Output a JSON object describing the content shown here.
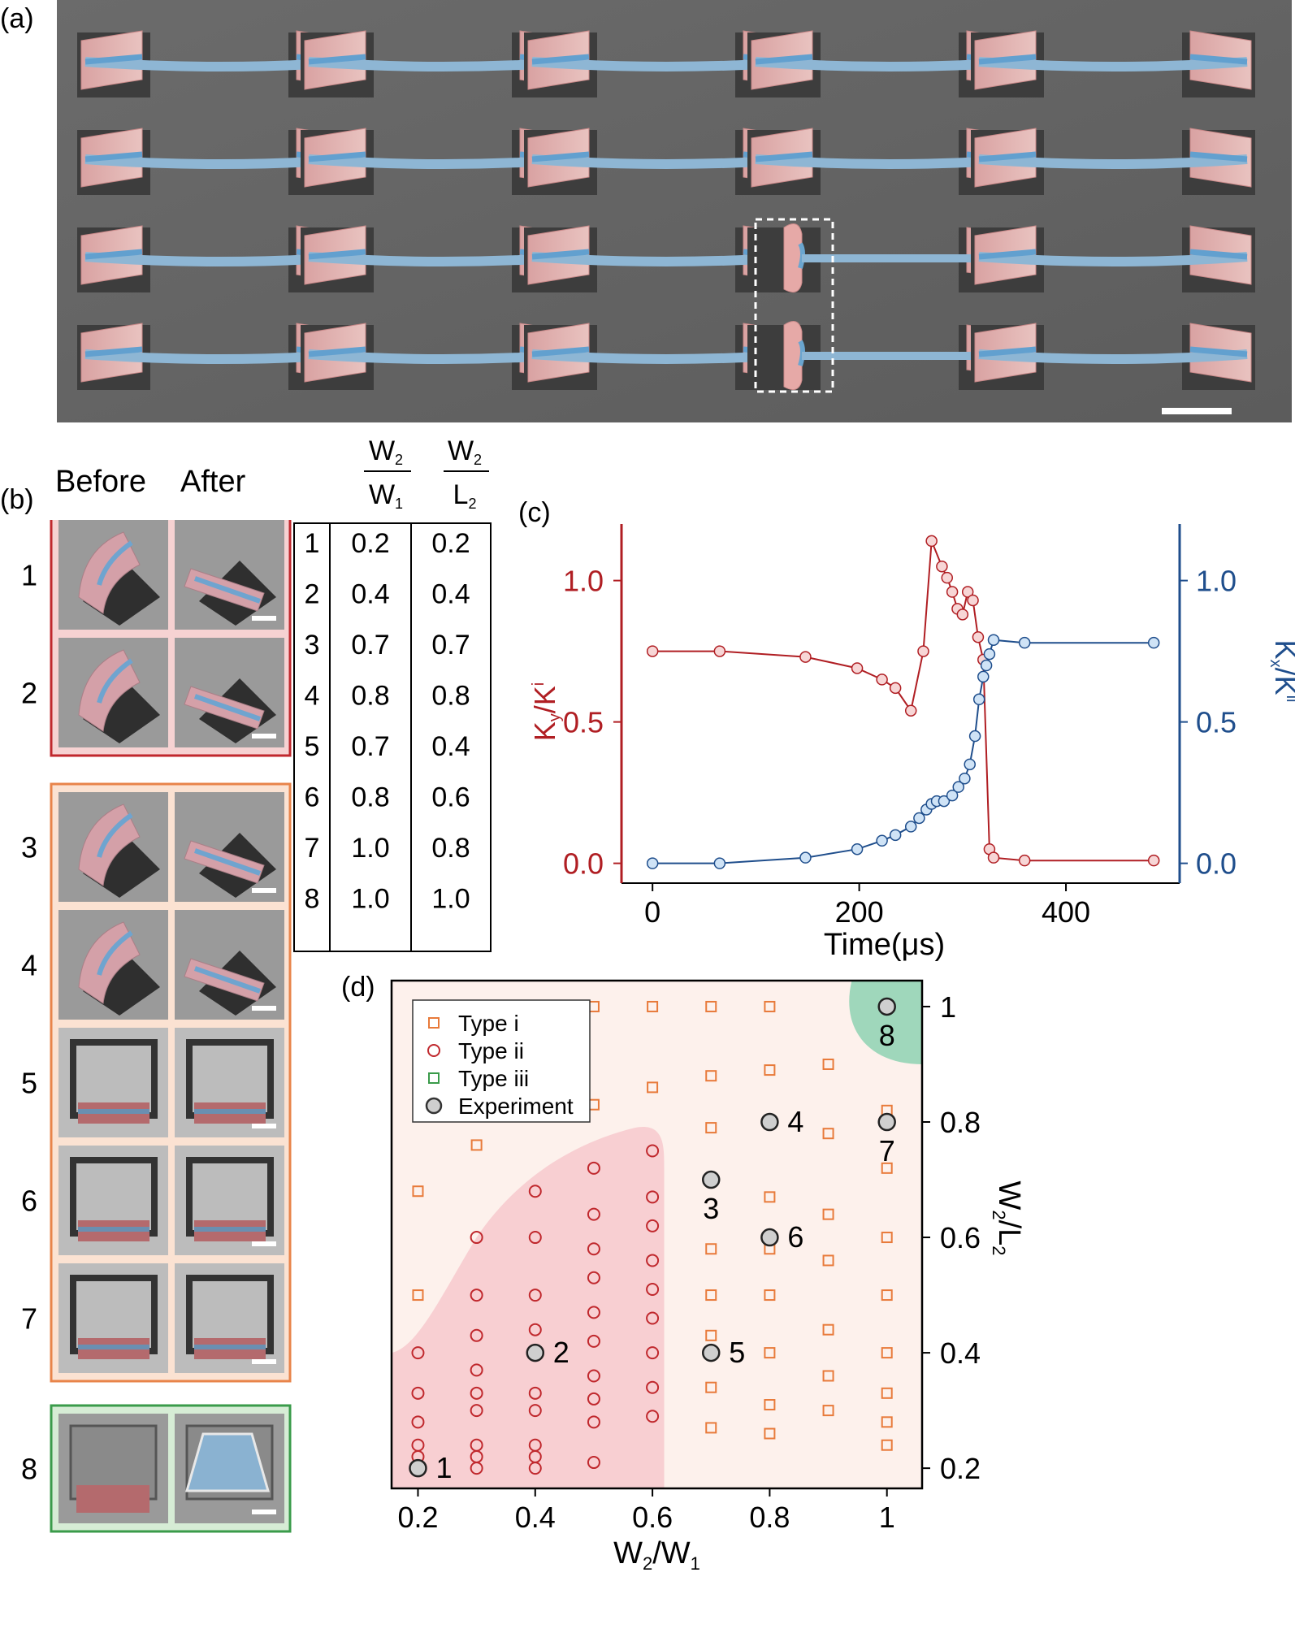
{
  "panel_labels": {
    "a": "(a)",
    "b": "(b)",
    "c": "(c)",
    "d": "(d)"
  },
  "panel_b": {
    "header_before": "Before",
    "header_after": "After",
    "rows": [
      "1",
      "2",
      "3",
      "4",
      "5",
      "6",
      "7",
      "8"
    ],
    "groups": [
      {
        "rows": [
          1,
          2
        ],
        "border": "#c0282d",
        "fill": "#f6d2d2"
      },
      {
        "rows": [
          3,
          4,
          5,
          6,
          7
        ],
        "border": "#e8844a",
        "fill": "#fbe2d2"
      },
      {
        "rows": [
          8
        ],
        "border": "#3a9b4a",
        "fill": "#d6ecd5"
      }
    ]
  },
  "table": {
    "col1_num": "W",
    "col1_num_sub": "2",
    "col1_den": "W",
    "col1_den_sub": "1",
    "col2_num": "W",
    "col2_num_sub": "2",
    "col2_den": "L",
    "col2_den_sub": "2",
    "rows": [
      {
        "id": "1",
        "a": "0.2",
        "b": "0.2"
      },
      {
        "id": "2",
        "a": "0.4",
        "b": "0.4"
      },
      {
        "id": "3",
        "a": "0.7",
        "b": "0.7"
      },
      {
        "id": "4",
        "a": "0.8",
        "b": "0.8"
      },
      {
        "id": "5",
        "a": "0.7",
        "b": "0.4"
      },
      {
        "id": "6",
        "a": "0.8",
        "b": "0.6"
      },
      {
        "id": "7",
        "a": "1.0",
        "b": "0.8"
      },
      {
        "id": "8",
        "a": "1.0",
        "b": "1.0"
      }
    ]
  },
  "chart_data": [
    {
      "panel": "c",
      "type": "line",
      "xlabel": "Time(μs)",
      "ylabel_left": {
        "main": "K",
        "sub1": "y",
        "mid": "/K",
        "sup": "i"
      },
      "ylabel_right": {
        "main": "K",
        "sub1": "x",
        "mid": "/K",
        "sup": "ii"
      },
      "xlim": [
        -30,
        510
      ],
      "ylim": [
        -0.07,
        1.2
      ],
      "xticks": [
        0,
        200,
        400
      ],
      "yticks": [
        0.0,
        0.5,
        1.0
      ],
      "xtick_labels": [
        "0",
        "200",
        "400"
      ],
      "ytick_labels_left": [
        "0.0",
        "0.5",
        "1.0"
      ],
      "ytick_labels_right": [
        "0.0",
        "0.5",
        "1.0"
      ],
      "colors": {
        "left": "#b01e23",
        "right": "#1f4e8c",
        "left_marker_fill": "#f7d6d6",
        "right_marker_fill": "#cfe3f6"
      },
      "series": [
        {
          "axis": "left",
          "points": [
            [
              0,
              0.75
            ],
            [
              65,
              0.75
            ],
            [
              148,
              0.73
            ],
            [
              198,
              0.69
            ],
            [
              222,
              0.65
            ],
            [
              235,
              0.62
            ],
            [
              250,
              0.54
            ],
            [
              262,
              0.75
            ],
            [
              270,
              1.14
            ],
            [
              280,
              1.05
            ],
            [
              285,
              1.01
            ],
            [
              290,
              0.96
            ],
            [
              295,
              0.9
            ],
            [
              300,
              0.88
            ],
            [
              305,
              0.96
            ],
            [
              310,
              0.93
            ],
            [
              315,
              0.8
            ],
            [
              320,
              0.72
            ],
            [
              326,
              0.05
            ],
            [
              330,
              0.02
            ],
            [
              360,
              0.01
            ],
            [
              485,
              0.01
            ]
          ]
        },
        {
          "axis": "right",
          "points": [
            [
              0,
              0.0
            ],
            [
              65,
              0.0
            ],
            [
              148,
              0.02
            ],
            [
              198,
              0.05
            ],
            [
              222,
              0.08
            ],
            [
              235,
              0.1
            ],
            [
              250,
              0.13
            ],
            [
              258,
              0.16
            ],
            [
              265,
              0.19
            ],
            [
              270,
              0.21
            ],
            [
              275,
              0.22
            ],
            [
              282,
              0.22
            ],
            [
              290,
              0.24
            ],
            [
              296,
              0.27
            ],
            [
              302,
              0.3
            ],
            [
              307,
              0.35
            ],
            [
              312,
              0.45
            ],
            [
              316,
              0.58
            ],
            [
              320,
              0.66
            ],
            [
              323,
              0.7
            ],
            [
              326,
              0.74
            ],
            [
              330,
              0.79
            ],
            [
              360,
              0.78
            ],
            [
              485,
              0.78
            ]
          ]
        }
      ]
    },
    {
      "panel": "d",
      "type": "scatter",
      "xlabel": {
        "main": "W",
        "sub1": "2",
        "mid": "/W",
        "sub2": "1"
      },
      "ylabel": {
        "main": "W",
        "sub1": "2",
        "mid": "/L",
        "sub2": "2"
      },
      "xlim": [
        0.155,
        1.06
      ],
      "ylim": [
        0.165,
        1.045
      ],
      "xticks": [
        0.2,
        0.4,
        0.6,
        0.8,
        1.0
      ],
      "xtick_labels": [
        "0.2",
        "0.4",
        "0.6",
        "0.8",
        "1"
      ],
      "yticks": [
        0.2,
        0.4,
        0.6,
        0.8,
        1.0
      ],
      "ytick_labels": [
        "0.2",
        "0.4",
        "0.6",
        "0.8",
        "1"
      ],
      "legend": {
        "placement": "top-left",
        "entries": [
          {
            "label": "Type i",
            "marker": "square",
            "color": "#e87a3a"
          },
          {
            "label": "Type ii",
            "marker": "circle",
            "color": "#c0282d"
          },
          {
            "label": "Type iii",
            "marker": "square",
            "color": "#3a9b4a"
          },
          {
            "label": "Experiment",
            "marker": "filled-circle",
            "color": "#333333"
          }
        ]
      },
      "colors": {
        "background": "#fdf1ec",
        "type_ii_region": "#f8cfd2",
        "type_iii_region": "#9fd7bb",
        "type_i_band": "#fbdfd4"
      },
      "type_i": [
        [
          0.2,
          0.68
        ],
        [
          0.2,
          0.5
        ],
        [
          0.3,
          0.76
        ],
        [
          0.4,
          0.83
        ],
        [
          0.5,
          1.0
        ],
        [
          0.5,
          0.83
        ],
        [
          0.6,
          1.0
        ],
        [
          0.6,
          0.86
        ],
        [
          0.7,
          1.0
        ],
        [
          0.7,
          0.88
        ],
        [
          0.7,
          0.79
        ],
        [
          0.7,
          0.58
        ],
        [
          0.7,
          0.5
        ],
        [
          0.7,
          0.43
        ],
        [
          0.7,
          0.34
        ],
        [
          0.7,
          0.27
        ],
        [
          0.8,
          1.0
        ],
        [
          0.8,
          0.89
        ],
        [
          0.8,
          0.67
        ],
        [
          0.8,
          0.58
        ],
        [
          0.8,
          0.5
        ],
        [
          0.8,
          0.4
        ],
        [
          0.8,
          0.31
        ],
        [
          0.8,
          0.26
        ],
        [
          0.9,
          0.9
        ],
        [
          0.9,
          0.78
        ],
        [
          0.9,
          0.64
        ],
        [
          0.9,
          0.56
        ],
        [
          0.9,
          0.44
        ],
        [
          0.9,
          0.36
        ],
        [
          0.9,
          0.3
        ],
        [
          1.0,
          0.82
        ],
        [
          1.0,
          0.72
        ],
        [
          1.0,
          0.6
        ],
        [
          1.0,
          0.5
        ],
        [
          1.0,
          0.4
        ],
        [
          1.0,
          0.33
        ],
        [
          1.0,
          0.28
        ],
        [
          1.0,
          0.24
        ]
      ],
      "type_ii": [
        [
          0.2,
          0.4
        ],
        [
          0.2,
          0.33
        ],
        [
          0.2,
          0.28
        ],
        [
          0.2,
          0.24
        ],
        [
          0.2,
          0.22
        ],
        [
          0.3,
          0.6
        ],
        [
          0.3,
          0.5
        ],
        [
          0.3,
          0.43
        ],
        [
          0.3,
          0.37
        ],
        [
          0.3,
          0.33
        ],
        [
          0.3,
          0.3
        ],
        [
          0.3,
          0.24
        ],
        [
          0.3,
          0.22
        ],
        [
          0.3,
          0.2
        ],
        [
          0.4,
          0.68
        ],
        [
          0.4,
          0.6
        ],
        [
          0.4,
          0.5
        ],
        [
          0.4,
          0.44
        ],
        [
          0.4,
          0.33
        ],
        [
          0.4,
          0.3
        ],
        [
          0.4,
          0.24
        ],
        [
          0.4,
          0.22
        ],
        [
          0.4,
          0.2
        ],
        [
          0.5,
          0.72
        ],
        [
          0.5,
          0.64
        ],
        [
          0.5,
          0.58
        ],
        [
          0.5,
          0.53
        ],
        [
          0.5,
          0.47
        ],
        [
          0.5,
          0.42
        ],
        [
          0.5,
          0.36
        ],
        [
          0.5,
          0.32
        ],
        [
          0.5,
          0.28
        ],
        [
          0.5,
          0.21
        ],
        [
          0.6,
          0.75
        ],
        [
          0.6,
          0.67
        ],
        [
          0.6,
          0.62
        ],
        [
          0.6,
          0.56
        ],
        [
          0.6,
          0.51
        ],
        [
          0.6,
          0.46
        ],
        [
          0.6,
          0.4
        ],
        [
          0.6,
          0.34
        ],
        [
          0.6,
          0.29
        ]
      ],
      "experiment": [
        {
          "label": "1",
          "x": 0.2,
          "y": 0.2,
          "pos": "right"
        },
        {
          "label": "2",
          "x": 0.4,
          "y": 0.4,
          "pos": "right"
        },
        {
          "label": "3",
          "x": 0.7,
          "y": 0.7,
          "pos": "below"
        },
        {
          "label": "4",
          "x": 0.8,
          "y": 0.8,
          "pos": "right"
        },
        {
          "label": "5",
          "x": 0.7,
          "y": 0.4,
          "pos": "right"
        },
        {
          "label": "6",
          "x": 0.8,
          "y": 0.6,
          "pos": "right"
        },
        {
          "label": "7",
          "x": 1.0,
          "y": 0.8,
          "pos": "below"
        },
        {
          "label": "8",
          "x": 1.0,
          "y": 1.0,
          "pos": "below"
        }
      ]
    }
  ]
}
